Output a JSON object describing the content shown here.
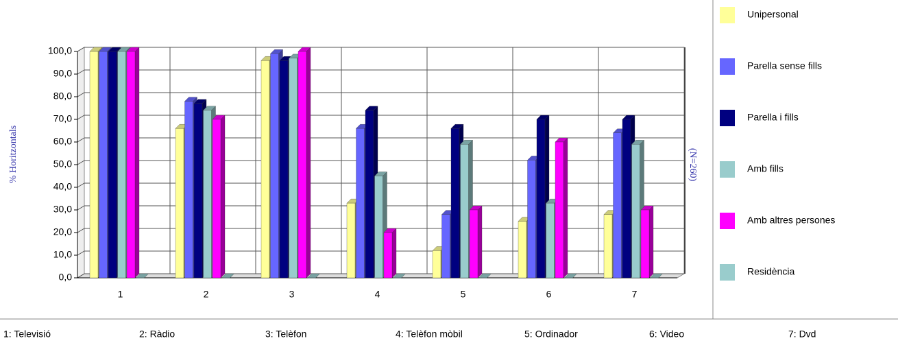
{
  "chart_data": {
    "type": "bar3d",
    "y_label": "% Horitzontals",
    "side_label": "(N=260)",
    "categories": [
      "1",
      "2",
      "3",
      "4",
      "5",
      "6",
      "7"
    ],
    "footnotes": [
      "1: Televisió",
      "2: Ràdio",
      "3: Telèfon",
      "4: Telèfon mòbil",
      "5: Ordinador",
      "6: Video",
      "7: Dvd"
    ],
    "series": [
      {
        "name": "Unipersonal",
        "color": "#ffff99",
        "values": [
          100,
          66,
          96,
          33,
          12,
          25,
          28
        ]
      },
      {
        "name": "Parella sense fills",
        "color": "#6666ff",
        "values": [
          100,
          78,
          99,
          66,
          28,
          52,
          64
        ]
      },
      {
        "name": "Parella i fills",
        "color": "#000080",
        "values": [
          100,
          77,
          96,
          74,
          66,
          70,
          70
        ]
      },
      {
        "name": "Amb fills",
        "color": "#99cccc",
        "values": [
          100,
          74,
          97,
          45,
          59,
          33,
          59
        ]
      },
      {
        "name": "Amb altres persones",
        "color": "#ff00ff",
        "values": [
          100,
          70,
          100,
          20,
          30,
          60,
          30
        ]
      },
      {
        "name": "Residència",
        "color": "#99cccc",
        "values": [
          0,
          0,
          0,
          0,
          0,
          0,
          0
        ]
      }
    ],
    "ylim": [
      0,
      100
    ],
    "yticks": [
      {
        "value": 0,
        "label": "0,0"
      },
      {
        "value": 10,
        "label": "10,0"
      },
      {
        "value": 20,
        "label": "20,0"
      },
      {
        "value": 30,
        "label": "30,0"
      },
      {
        "value": 40,
        "label": "40,0"
      },
      {
        "value": 50,
        "label": "50,0"
      },
      {
        "value": 60,
        "label": "60,0"
      },
      {
        "value": 70,
        "label": "70,0"
      },
      {
        "value": 80,
        "label": "80,0"
      },
      {
        "value": 90,
        "label": "90,0"
      },
      {
        "value": 100,
        "label": "100,0"
      }
    ],
    "grid": true,
    "legend": "right"
  }
}
